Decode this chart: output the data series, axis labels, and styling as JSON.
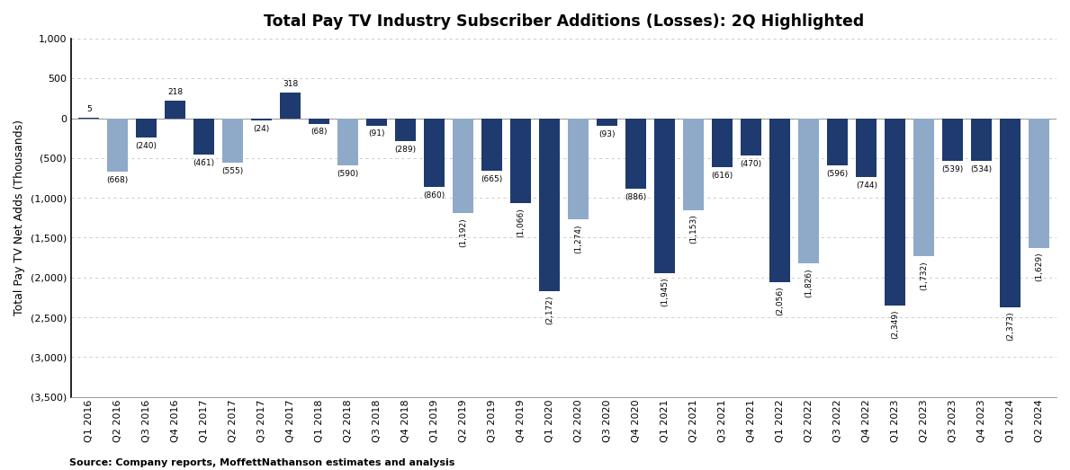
{
  "title": "Total Pay TV Industry Subscriber Additions (Losses): 2Q Highlighted",
  "ylabel": "Total Pay TV Net Adds (Thousands)",
  "source": "Source: Company reports, MoffettNathanson estimates and analysis",
  "categories": [
    "Q1 2016",
    "Q2 2016",
    "Q3 2016",
    "Q4 2016",
    "Q1 2017",
    "Q2 2017",
    "Q3 2017",
    "Q4 2017",
    "Q1 2018",
    "Q2 2018",
    "Q3 2018",
    "Q4 2018",
    "Q1 2019",
    "Q2 2019",
    "Q3 2019",
    "Q4 2019",
    "Q1 2020",
    "Q2 2020",
    "Q3 2020",
    "Q4 2020",
    "Q1 2021",
    "Q2 2021",
    "Q3 2021",
    "Q4 2021",
    "Q1 2022",
    "Q2 2022",
    "Q3 2022",
    "Q4 2022",
    "Q1 2023",
    "Q2 2023",
    "Q3 2023",
    "Q4 2023",
    "Q1 2024",
    "Q2 2024"
  ],
  "values": [
    5,
    -668,
    -240,
    218,
    -461,
    -555,
    -24,
    318,
    -68,
    -590,
    -91,
    -289,
    -860,
    -1192,
    -665,
    -1066,
    -2172,
    -1274,
    -93,
    -886,
    -1945,
    -1153,
    -616,
    -470,
    -2056,
    -1826,
    -596,
    -744,
    -2349,
    -1732,
    -539,
    -534,
    -2373,
    -1629
  ],
  "is_q2": [
    false,
    true,
    false,
    false,
    false,
    true,
    false,
    false,
    false,
    true,
    false,
    false,
    false,
    true,
    false,
    false,
    false,
    true,
    false,
    false,
    false,
    true,
    false,
    false,
    false,
    true,
    false,
    false,
    false,
    true,
    false,
    false,
    false,
    true
  ],
  "color_q2": "#8eaac8",
  "color_other": "#1e3a6e",
  "ylim_min": -3500,
  "ylim_max": 1000,
  "yticks": [
    1000,
    500,
    0,
    -500,
    -1000,
    -1500,
    -2000,
    -2500,
    -3000,
    -3500
  ],
  "ytick_labels": [
    "1,000",
    "500",
    "0",
    "(500)",
    "(1,000)",
    "(1,500)",
    "(2,000)",
    "(2,500)",
    "(3,000)",
    "(3,500)"
  ],
  "background_color": "#ffffff",
  "grid_color": "#c8c8c8",
  "title_fontsize": 12.5,
  "label_fontsize": 9,
  "tick_fontsize": 8,
  "source_fontsize": 8,
  "bar_label_fontsize": 6.5
}
